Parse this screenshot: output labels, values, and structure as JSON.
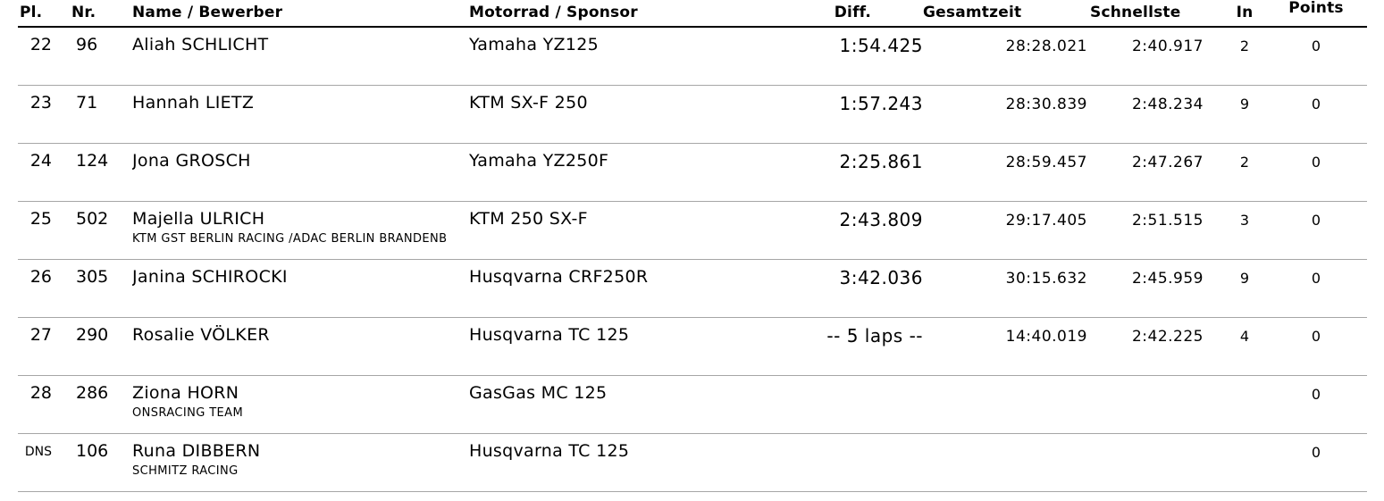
{
  "table": {
    "columns": [
      {
        "key": "pl",
        "label": "Pl."
      },
      {
        "key": "nr",
        "label": "Nr."
      },
      {
        "key": "name",
        "label": "Name / Bewerber"
      },
      {
        "key": "moto",
        "label": "Motorrad / Sponsor"
      },
      {
        "key": "diff",
        "label": "Diff."
      },
      {
        "key": "gesamtzeit",
        "label": "Gesamtzeit"
      },
      {
        "key": "schnellste",
        "label": "Schnellste"
      },
      {
        "key": "in",
        "label": "In"
      },
      {
        "key": "points",
        "label": "Points"
      }
    ],
    "rows": [
      {
        "pl": "22",
        "nr": "96",
        "name": "Aliah SCHLICHT",
        "sponsor": "",
        "moto": "Yamaha YZ125",
        "diff": "1:54.425",
        "gesamtzeit": "28:28.021",
        "schnellste": "2:40.917",
        "in": "2",
        "points": "0"
      },
      {
        "pl": "23",
        "nr": "71",
        "name": "Hannah LIETZ",
        "sponsor": "",
        "moto": "KTM SX-F 250",
        "diff": "1:57.243",
        "gesamtzeit": "28:30.839",
        "schnellste": "2:48.234",
        "in": "9",
        "points": "0"
      },
      {
        "pl": "24",
        "nr": "124",
        "name": "Jona GROSCH",
        "sponsor": "",
        "moto": "Yamaha YZ250F",
        "diff": "2:25.861",
        "gesamtzeit": "28:59.457",
        "schnellste": "2:47.267",
        "in": "2",
        "points": "0"
      },
      {
        "pl": "25",
        "nr": "502",
        "name": "Majella ULRICH",
        "sponsor": "KTM GST BERLIN RACING /ADAC BERLIN BRANDENB",
        "moto": "KTM 250 SX-F",
        "diff": "2:43.809",
        "gesamtzeit": "29:17.405",
        "schnellste": "2:51.515",
        "in": "3",
        "points": "0"
      },
      {
        "pl": "26",
        "nr": "305",
        "name": "Janina SCHIROCKI",
        "sponsor": "",
        "moto": "Husqvarna CRF250R",
        "diff": "3:42.036",
        "gesamtzeit": "30:15.632",
        "schnellste": "2:45.959",
        "in": "9",
        "points": "0"
      },
      {
        "pl": "27",
        "nr": "290",
        "name": "Rosalie VÖLKER",
        "sponsor": "",
        "moto": "Husqvarna TC 125",
        "diff": "-- 5 laps --",
        "gesamtzeit": "14:40.019",
        "schnellste": "2:42.225",
        "in": "4",
        "points": "0"
      },
      {
        "pl": "28",
        "nr": "286",
        "name": "Ziona HORN",
        "sponsor": "ONSRACING TEAM",
        "moto": "GasGas MC 125",
        "diff": "",
        "gesamtzeit": "",
        "schnellste": "",
        "in": "",
        "points": "0"
      },
      {
        "pl": "DNS",
        "nr": "106",
        "name": "Runa DIBBERN",
        "sponsor": "SCHMITZ RACING",
        "moto": "Husqvarna TC 125",
        "diff": "",
        "gesamtzeit": "",
        "schnellste": "",
        "in": "",
        "points": "0"
      }
    ]
  },
  "colors": {
    "text": "#000000",
    "header_rule": "#000000",
    "row_separator": "#a6a6a6",
    "background": "#ffffff"
  }
}
